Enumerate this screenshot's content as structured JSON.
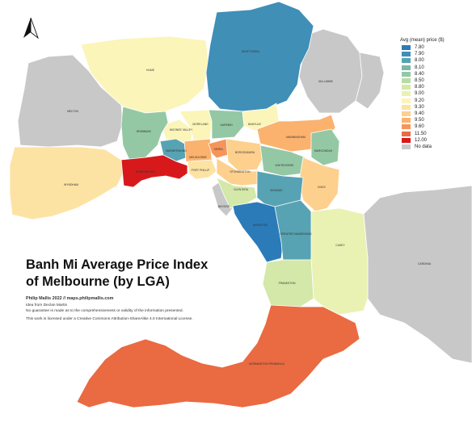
{
  "title_line1": "Banh Mi Average Price Index",
  "title_line2": "of Melbourne (by LGA)",
  "credit": "Philip Mallis 2022 // maps.philipmallis.com",
  "notes": [
    "Idea from Declan Martin",
    "No guarantee is made as to the comprehensiveness or validity of the information presented.",
    "This work is licensed under a Creative Commons Attribution-ShareAlike 4.0 International License."
  ],
  "north_arrow_icon": "north-arrow-icon",
  "legend": {
    "title": "Avg (mean) price ($)",
    "items": [
      {
        "label": "7.80",
        "color": "#2b7bb9"
      },
      {
        "label": "7.90",
        "color": "#3f8fb7"
      },
      {
        "label": "8.00",
        "color": "#57a3b3"
      },
      {
        "label": "8.10",
        "color": "#7ab8a8"
      },
      {
        "label": "8.40",
        "color": "#94c8a4"
      },
      {
        "label": "8.50",
        "color": "#b7dca3"
      },
      {
        "label": "8.80",
        "color": "#d3e8a9"
      },
      {
        "label": "9.00",
        "color": "#eaf2b3"
      },
      {
        "label": "9.20",
        "color": "#fbf5b9"
      },
      {
        "label": "9.30",
        "color": "#fde3a3"
      },
      {
        "label": "9.40",
        "color": "#fdd08e"
      },
      {
        "label": "9.50",
        "color": "#fbb26e"
      },
      {
        "label": "9.60",
        "color": "#f6955a"
      },
      {
        "label": "11.50",
        "color": "#ea6a42"
      },
      {
        "label": "12.00",
        "color": "#d7191c"
      },
      {
        "label": "No data",
        "color": "#c8c8c8"
      }
    ]
  },
  "lgas": [
    {
      "name": "WHITTLESEA",
      "value": "7.90"
    },
    {
      "name": "HUME",
      "value": "9.20"
    },
    {
      "name": "NILLUMBIK",
      "value": "No data"
    },
    {
      "name": "MELTON",
      "value": "No data"
    },
    {
      "name": "BRIMBANK",
      "value": "8.40"
    },
    {
      "name": "MOONEE VALLEY",
      "value": "9.20"
    },
    {
      "name": "MORELAND",
      "value": "9.20"
    },
    {
      "name": "DAREBIN",
      "value": "8.40"
    },
    {
      "name": "BANYULE",
      "value": "9.20"
    },
    {
      "name": "MANNINGHAM",
      "value": "9.50"
    },
    {
      "name": "MARIBYRNONG",
      "value": "8.00"
    },
    {
      "name": "MELBOURNE",
      "value": "9.50"
    },
    {
      "name": "YARRA",
      "value": "9.60"
    },
    {
      "name": "BOROONDARA",
      "value": "9.40"
    },
    {
      "name": "MAROONDAH",
      "value": "8.40"
    },
    {
      "name": "WYNDHAM",
      "value": "9.30"
    },
    {
      "name": "HOBSONS BAY",
      "value": "12.00"
    },
    {
      "name": "PORT PHILLIP",
      "value": "9.30"
    },
    {
      "name": "STONNINGTON",
      "value": "9.40"
    },
    {
      "name": "WHITEHORSE",
      "value": "8.40"
    },
    {
      "name": "KNOX",
      "value": "9.40"
    },
    {
      "name": "GLEN EIRA",
      "value": "8.80"
    },
    {
      "name": "MONASH",
      "value": "8.00"
    },
    {
      "name": "BAYSIDE",
      "value": "No data"
    },
    {
      "name": "KINGSTON",
      "value": "7.80"
    },
    {
      "name": "GREATER DANDENONG",
      "value": "8.00"
    },
    {
      "name": "CASEY",
      "value": "9.00"
    },
    {
      "name": "FRANKSTON",
      "value": "8.80"
    },
    {
      "name": "MORNINGTON PENINSULA",
      "value": "11.50"
    },
    {
      "name": "CARDINIA",
      "value": "No data"
    }
  ]
}
